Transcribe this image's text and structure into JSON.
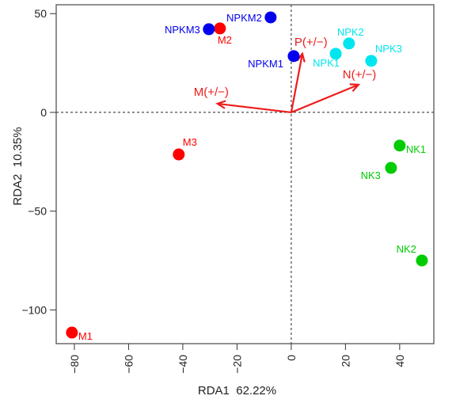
{
  "chart_data": {
    "type": "scatter",
    "title": "",
    "xlabel": "RDA1  62.22%",
    "ylabel": "RDA2  10.35%",
    "xlim": [
      -86.7,
      52.6
    ],
    "ylim": [
      -117.1,
      54.5
    ],
    "xticks": [
      -80,
      -60,
      -40,
      -20,
      0,
      20,
      40
    ],
    "yticks": [
      -100,
      -50,
      0,
      50
    ],
    "xtick_labels": [
      "−80",
      "−60",
      "−40",
      "−20",
      "0",
      "20",
      "40"
    ],
    "ytick_labels": [
      "−100",
      "−50",
      "0",
      "50"
    ],
    "grid": false,
    "reference_lines": {
      "x": 0,
      "y": 0,
      "style": "dashed"
    },
    "groups": [
      {
        "name": "M",
        "color": "#ff0000"
      },
      {
        "name": "NPKM",
        "color": "#0000ee"
      },
      {
        "name": "NPK",
        "color": "#00e5ee"
      },
      {
        "name": "NK",
        "color": "#00cc00"
      }
    ],
    "points": [
      {
        "label": "M1",
        "group": "M",
        "x": -80.9,
        "y": -111.5,
        "label_pos": "right-below"
      },
      {
        "label": "M2",
        "group": "M",
        "x": -26.3,
        "y": 42.5,
        "label_pos": "below"
      },
      {
        "label": "M3",
        "group": "M",
        "x": -41.5,
        "y": -21.3,
        "label_pos": "above-right"
      },
      {
        "label": "NPKM1",
        "group": "NPKM",
        "x": 0.9,
        "y": 28.5,
        "label_pos": "left-below"
      },
      {
        "label": "NPKM2",
        "group": "NPKM",
        "x": -7.6,
        "y": 48.1,
        "label_pos": "left"
      },
      {
        "label": "NPKM3",
        "group": "NPKM",
        "x": -30.4,
        "y": 42.1,
        "label_pos": "left"
      },
      {
        "label": "NPK1",
        "group": "NPK",
        "x": 16.4,
        "y": 29.7,
        "label_pos": "below-left"
      },
      {
        "label": "NPK2",
        "group": "NPK",
        "x": 21.3,
        "y": 34.9,
        "label_pos": "above"
      },
      {
        "label": "NPK3",
        "group": "NPK",
        "x": 29.5,
        "y": 26.1,
        "label_pos": "above-right"
      },
      {
        "label": "NK1",
        "group": "NK",
        "x": 40.0,
        "y": -16.8,
        "label_pos": "right-below"
      },
      {
        "label": "NK2",
        "group": "NK",
        "x": 48.2,
        "y": -75.0,
        "label_pos": "above-left"
      },
      {
        "label": "NK3",
        "group": "NK",
        "x": 36.8,
        "y": -28.1,
        "label_pos": "left-below"
      }
    ],
    "vectors": [
      {
        "label": "M(+/−)",
        "x": -27.2,
        "y": 4.4,
        "color": "#ee1c1c"
      },
      {
        "label": "P(+/−)",
        "x": 4.1,
        "y": 29.7,
        "color": "#ee1c1c"
      },
      {
        "label": "N(+/−)",
        "x": 24.8,
        "y": 14.0,
        "color": "#ee1c1c"
      }
    ]
  }
}
